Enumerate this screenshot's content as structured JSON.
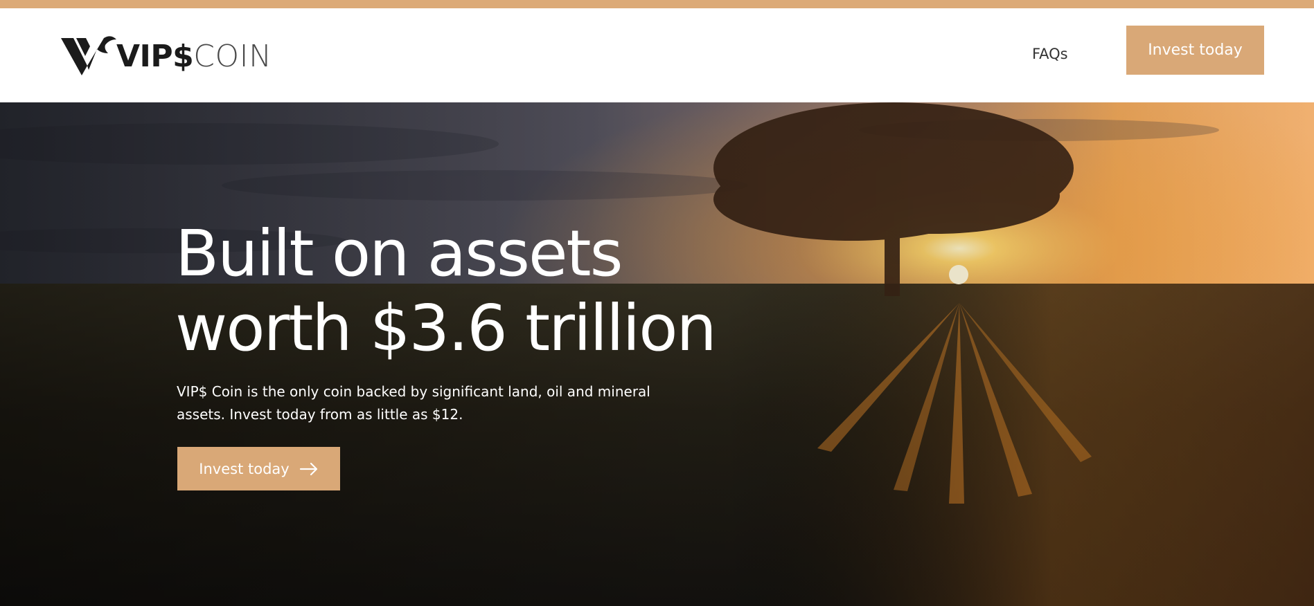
{
  "brand": {
    "name_bold": "VIP$",
    "name_light": "COIN",
    "accent_color": "#d9a877"
  },
  "nav": {
    "faq_label": "FAQs",
    "cta_label": "Invest today"
  },
  "hero": {
    "title_line1": "Built on assets",
    "title_line2": "worth $3.6 trillion",
    "description": "VIP$ Coin is the only coin backed by significant land, oil and mineral assets. Invest today from as little as $12.",
    "cta_label": "Invest today",
    "cta_icon": "arrow-right-icon",
    "background_image": "sunset-tree-field-photo"
  }
}
